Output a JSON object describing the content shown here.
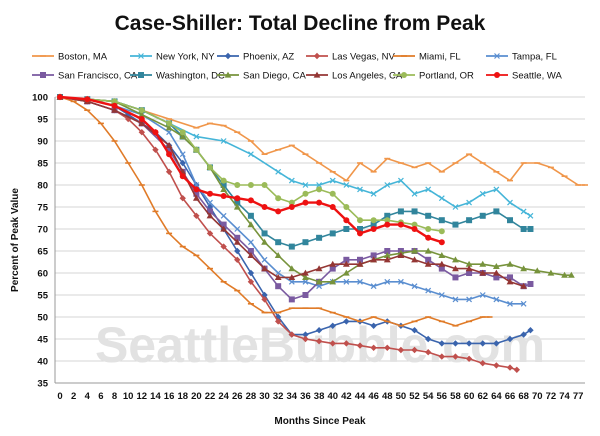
{
  "chart_data": {
    "type": "line",
    "title": "Case-Shiller: Total Decline from Peak",
    "xlabel": "Months Since Peak",
    "ylabel": "Percent of Peak Value",
    "watermark": "SeattleBubble.com",
    "xlim": [
      0,
      77
    ],
    "ylim": [
      35,
      100
    ],
    "xticks": [
      0,
      2,
      4,
      6,
      8,
      10,
      12,
      14,
      16,
      18,
      20,
      22,
      24,
      26,
      28,
      30,
      32,
      34,
      36,
      38,
      40,
      42,
      44,
      46,
      48,
      50,
      52,
      54,
      56,
      58,
      60,
      62,
      64,
      66,
      68,
      70,
      72,
      74,
      76
    ],
    "xtick_labels": [
      "0",
      "2",
      "4",
      "6",
      "8",
      "10",
      "12",
      "14",
      "16",
      "18",
      "20",
      "22",
      "24",
      "26",
      "28",
      "30",
      "32",
      "34",
      "36",
      "38",
      "40",
      "42",
      "44",
      "46",
      "48",
      "50",
      "52",
      "54",
      "56",
      "58",
      "60",
      "62",
      "64",
      "66",
      "68",
      "70",
      "72",
      "74",
      "77"
    ],
    "yticks": [
      35,
      40,
      45,
      50,
      55,
      60,
      65,
      70,
      75,
      80,
      85,
      90,
      95,
      100
    ],
    "grid": "horizontal",
    "legend_position": "top",
    "series": [
      {
        "name": "Boston, MA",
        "color": "#f0964a",
        "marker": "dash",
        "x": [
          0,
          4,
          8,
          12,
          16,
          20,
          22,
          24,
          26,
          28,
          30,
          32,
          34,
          36,
          38,
          40,
          42,
          44,
          46,
          48,
          50,
          52,
          54,
          56,
          58,
          60,
          62,
          64,
          66,
          68,
          70,
          72,
          74,
          76,
          77
        ],
        "y": [
          100,
          99.5,
          99,
          97,
          95,
          93,
          94,
          93.5,
          92,
          90,
          87,
          88,
          89,
          87,
          85,
          83,
          81,
          85,
          83,
          86,
          85,
          84,
          85,
          83,
          85,
          87,
          85,
          83,
          81,
          85,
          85,
          84,
          82,
          80,
          80
        ]
      },
      {
        "name": "New York, NY",
        "color": "#45b5d8",
        "marker": "x",
        "x": [
          0,
          4,
          8,
          12,
          16,
          20,
          24,
          28,
          32,
          34,
          36,
          38,
          40,
          42,
          44,
          46,
          48,
          50,
          52,
          54,
          56,
          58,
          60,
          62,
          64,
          66,
          68,
          69
        ],
        "y": [
          100,
          99.5,
          99,
          97,
          94,
          91,
          90,
          87,
          83,
          81,
          80,
          80,
          81,
          80,
          79,
          78,
          80,
          81,
          78,
          79,
          77,
          75,
          76,
          78,
          79,
          76,
          74,
          73
        ]
      },
      {
        "name": "Phoenix, AZ",
        "color": "#3a64ad",
        "marker": "diamond",
        "x": [
          0,
          4,
          8,
          10,
          12,
          14,
          16,
          18,
          20,
          22,
          24,
          26,
          28,
          30,
          32,
          34,
          36,
          38,
          40,
          42,
          44,
          46,
          48,
          50,
          52,
          54,
          56,
          58,
          60,
          62,
          64,
          66,
          68,
          69
        ],
        "y": [
          100,
          99.5,
          98,
          96,
          94,
          92,
          89,
          85,
          80,
          75,
          70,
          65,
          60,
          55,
          50,
          46,
          46,
          47,
          48,
          49,
          49,
          48,
          49,
          48,
          47,
          45,
          44,
          44,
          44,
          44,
          44,
          45,
          46,
          47
        ]
      },
      {
        "name": "Las Vegas, NV",
        "color": "#c0504d",
        "marker": "diamond",
        "x": [
          0,
          4,
          8,
          10,
          12,
          14,
          16,
          18,
          20,
          22,
          24,
          26,
          28,
          30,
          32,
          34,
          36,
          38,
          40,
          42,
          44,
          46,
          48,
          50,
          52,
          54,
          56,
          58,
          60,
          62,
          64,
          66,
          67
        ],
        "y": [
          100,
          99,
          97,
          95,
          92,
          88,
          83,
          77,
          73,
          69,
          66,
          63,
          58,
          54,
          49,
          46,
          45,
          44.5,
          44,
          44,
          43.5,
          43,
          43,
          42.5,
          42.5,
          42,
          41,
          41,
          40.5,
          39.5,
          39,
          38.5,
          38
        ]
      },
      {
        "name": "Miami, FL",
        "color": "#e07b28",
        "marker": "dash",
        "x": [
          0,
          2,
          4,
          6,
          8,
          10,
          12,
          14,
          16,
          18,
          20,
          22,
          24,
          26,
          28,
          30,
          32,
          34,
          36,
          38,
          40,
          42,
          44,
          46,
          48,
          50,
          52,
          54,
          56,
          58,
          60,
          62,
          63
        ],
        "y": [
          100,
          99,
          97,
          94,
          90,
          85,
          80,
          74,
          69,
          66,
          64,
          61,
          58,
          56,
          53,
          51,
          51,
          52,
          52,
          52,
          51,
          50,
          49,
          50,
          49,
          48,
          49,
          50,
          49,
          48,
          49,
          50,
          50
        ]
      },
      {
        "name": "Tampa, FL",
        "color": "#5a8ed0",
        "marker": "x",
        "x": [
          0,
          4,
          8,
          12,
          16,
          18,
          20,
          22,
          24,
          26,
          28,
          30,
          32,
          34,
          36,
          38,
          40,
          42,
          44,
          46,
          48,
          50,
          52,
          54,
          56,
          58,
          60,
          62,
          64,
          66,
          68
        ],
        "y": [
          100,
          99.5,
          98,
          96,
          92,
          87,
          80,
          76,
          73,
          70,
          67,
          63,
          60,
          58,
          58,
          57,
          58,
          58,
          58,
          57,
          58,
          58,
          57,
          56,
          55,
          54,
          54,
          55,
          54,
          53,
          53
        ]
      },
      {
        "name": "San Francisco, CA",
        "color": "#7a5aa0",
        "marker": "square",
        "x": [
          0,
          4,
          8,
          12,
          16,
          18,
          20,
          22,
          24,
          26,
          28,
          30,
          32,
          34,
          36,
          38,
          40,
          42,
          44,
          46,
          48,
          50,
          52,
          54,
          56,
          58,
          60,
          62,
          64,
          66,
          68,
          69
        ],
        "y": [
          100,
          99,
          97,
          94,
          88,
          83,
          78,
          74,
          71,
          68,
          65,
          61,
          57,
          54,
          55,
          58,
          61,
          63,
          63,
          64,
          65,
          65,
          65,
          63,
          61,
          59,
          60,
          60,
          59,
          59,
          57,
          57.5
        ]
      },
      {
        "name": "Washington, DC",
        "color": "#31859c",
        "marker": "square",
        "x": [
          0,
          4,
          8,
          12,
          16,
          18,
          20,
          22,
          24,
          26,
          28,
          30,
          32,
          34,
          36,
          38,
          40,
          42,
          44,
          46,
          48,
          50,
          52,
          54,
          56,
          58,
          60,
          62,
          64,
          66,
          68,
          69
        ],
        "y": [
          100,
          99.5,
          99,
          97,
          94,
          91,
          88,
          84,
          80,
          76,
          73,
          69,
          67,
          66,
          67,
          68,
          69,
          70,
          70,
          71,
          73,
          74,
          74,
          73,
          72,
          71,
          72,
          73,
          74,
          72,
          70,
          70
        ]
      },
      {
        "name": "San Diego, CA",
        "color": "#77933c",
        "marker": "triangle",
        "x": [
          0,
          4,
          8,
          12,
          16,
          18,
          20,
          22,
          24,
          26,
          28,
          30,
          32,
          34,
          36,
          38,
          40,
          42,
          44,
          46,
          48,
          50,
          52,
          54,
          56,
          58,
          60,
          62,
          64,
          66,
          68,
          70,
          72,
          74,
          75
        ],
        "y": [
          100,
          99.5,
          99,
          96,
          93,
          91,
          88,
          84,
          79,
          75,
          71,
          67,
          64,
          61,
          59,
          58,
          58,
          60,
          62,
          63,
          64,
          64.5,
          65,
          65,
          64,
          63,
          62,
          62,
          61.5,
          62,
          61,
          60.5,
          60,
          59.5,
          59.5
        ]
      },
      {
        "name": "Los Angeles, CA",
        "color": "#943634",
        "marker": "triangle",
        "x": [
          0,
          4,
          8,
          12,
          16,
          18,
          20,
          22,
          24,
          26,
          28,
          30,
          32,
          34,
          36,
          38,
          40,
          42,
          44,
          46,
          48,
          50,
          52,
          54,
          56,
          58,
          60,
          62,
          64,
          66,
          68
        ],
        "y": [
          100,
          99,
          97,
          94,
          89,
          83,
          77,
          73,
          70,
          67,
          64,
          61,
          59,
          59,
          60,
          61,
          62,
          62,
          62,
          63,
          63,
          64,
          63,
          62,
          62,
          61,
          61,
          60,
          60,
          58,
          57
        ]
      },
      {
        "name": "Portland, OR",
        "color": "#9bbb59",
        "marker": "circle",
        "x": [
          0,
          4,
          8,
          12,
          16,
          18,
          20,
          22,
          24,
          26,
          28,
          30,
          32,
          34,
          36,
          38,
          40,
          42,
          44,
          46,
          48,
          50,
          52,
          54,
          56
        ],
        "y": [
          100,
          99.5,
          99,
          97,
          94,
          92,
          88,
          84,
          81,
          80,
          80,
          80,
          77,
          76,
          78,
          79,
          78,
          75,
          72,
          72,
          72,
          71.5,
          71,
          70,
          69.5
        ]
      },
      {
        "name": "Seattle, WA",
        "color": "#ee1111",
        "marker": "circle",
        "x": [
          0,
          4,
          8,
          12,
          14,
          16,
          18,
          20,
          22,
          24,
          26,
          28,
          30,
          32,
          34,
          36,
          38,
          40,
          42,
          44,
          46,
          48,
          50,
          52,
          54,
          56
        ],
        "y": [
          100,
          99.5,
          98,
          95,
          92,
          87,
          82,
          79,
          78,
          77.5,
          77,
          76.5,
          75,
          74,
          75,
          76,
          76,
          75,
          72,
          69,
          70,
          71,
          71,
          70,
          68,
          67
        ]
      }
    ]
  }
}
